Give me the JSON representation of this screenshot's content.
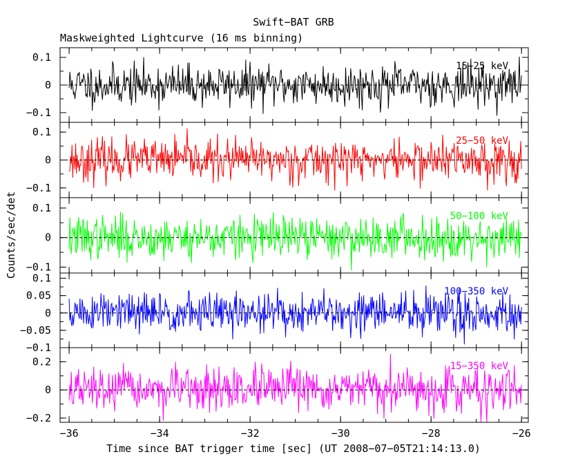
{
  "chart_data": {
    "type": "line",
    "title": "Swift−BAT GRB",
    "subtitle": "Maskweighted Lightcurve (16 ms binning)",
    "xlabel": "Time since BAT trigger time [sec] (UT 2008−07−05T21:14:13.0)",
    "ylabel": "Counts/sec/det",
    "xlim": [
      -36.2,
      -25.85
    ],
    "x_start": -36.0,
    "x_end": -26.0,
    "bin_width": 0.016,
    "x_ticks": [
      {
        "value": -36,
        "label": "−36"
      },
      {
        "value": -34,
        "label": "−34"
      },
      {
        "value": -32,
        "label": "−32"
      },
      {
        "value": -30,
        "label": "−30"
      },
      {
        "value": -28,
        "label": "−28"
      },
      {
        "value": -26,
        "label": "−26"
      }
    ],
    "x_minor_step": 0.5,
    "series": [
      {
        "name": "15−25 keV",
        "color": "#000000",
        "ylim": [
          -0.135,
          0.135
        ],
        "noise_sigma": 0.037,
        "y_ticks": [
          {
            "value": 0.1,
            "label": "0.1"
          },
          {
            "value": 0,
            "label": "0"
          },
          {
            "value": -0.1,
            "label": "−0.1"
          }
        ],
        "y_minor_step": 0.05,
        "seed": 11
      },
      {
        "name": "25−50 keV",
        "color": "#ff0000",
        "ylim": [
          -0.135,
          0.135
        ],
        "noise_sigma": 0.037,
        "y_ticks": [
          {
            "value": 0.1,
            "label": "0.1"
          },
          {
            "value": 0,
            "label": "0"
          },
          {
            "value": -0.1,
            "label": "−0.1"
          }
        ],
        "y_minor_step": 0.05,
        "seed": 23
      },
      {
        "name": "50−100 keV",
        "color": "#00ff00",
        "ylim": [
          -0.12,
          0.135
        ],
        "noise_sigma": 0.036,
        "y_ticks": [
          {
            "value": 0.1,
            "label": "0.1"
          },
          {
            "value": 0,
            "label": "0"
          },
          {
            "value": -0.1,
            "label": "−0.1"
          }
        ],
        "y_minor_step": 0.05,
        "seed": 37
      },
      {
        "name": "100−350 keV",
        "color": "#0000ff",
        "ylim": [
          -0.1,
          0.115
        ],
        "noise_sigma": 0.03,
        "y_ticks": [
          {
            "value": 0.1,
            "label": "0.1"
          },
          {
            "value": 0.05,
            "label": "0.05"
          },
          {
            "value": 0,
            "label": "0"
          },
          {
            "value": -0.05,
            "label": "−0.05"
          },
          {
            "value": -0.1,
            "label": "−0.1"
          }
        ],
        "y_minor_step": 0.025,
        "seed": 51
      },
      {
        "name": "15−350 keV",
        "color": "#ff00ff",
        "ylim": [
          -0.23,
          0.3
        ],
        "noise_sigma": 0.075,
        "y_ticks": [
          {
            "value": 0.2,
            "label": "0.2"
          },
          {
            "value": 0,
            "label": "0"
          },
          {
            "value": -0.2,
            "label": "−0.2"
          }
        ],
        "y_minor_step": 0.1,
        "seed": 67
      }
    ]
  }
}
